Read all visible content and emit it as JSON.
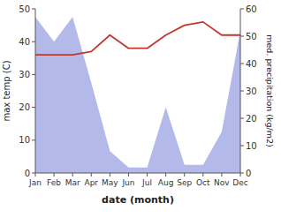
{
  "chart_data": {
    "type": "line",
    "categories": [
      "Jan",
      "Feb",
      "Mar",
      "Apr",
      "May",
      "Jun",
      "Jul",
      "Aug",
      "Sep",
      "Oct",
      "Nov",
      "Dec"
    ],
    "series": [
      {
        "type": "area",
        "axis": "y2",
        "color": "#b3b9e8",
        "values": [
          57,
          48,
          57,
          33,
          8,
          2,
          2,
          24,
          3,
          3,
          15,
          52
        ]
      },
      {
        "type": "line",
        "color": "#c0392b",
        "values": [
          36,
          36,
          36,
          37,
          42,
          38,
          38,
          42,
          45,
          46,
          42,
          42
        ]
      }
    ],
    "x_label": "date (month)",
    "y_label": "max temp (C)",
    "y2_label": "med. precipitation (kg/m2)",
    "ylim": [
      0,
      50
    ],
    "yticks": [
      0,
      10,
      20,
      30,
      40,
      50
    ],
    "y2lim": [
      0,
      60
    ],
    "y2ticks": [
      0,
      10,
      20,
      30,
      40,
      50,
      60
    ]
  }
}
